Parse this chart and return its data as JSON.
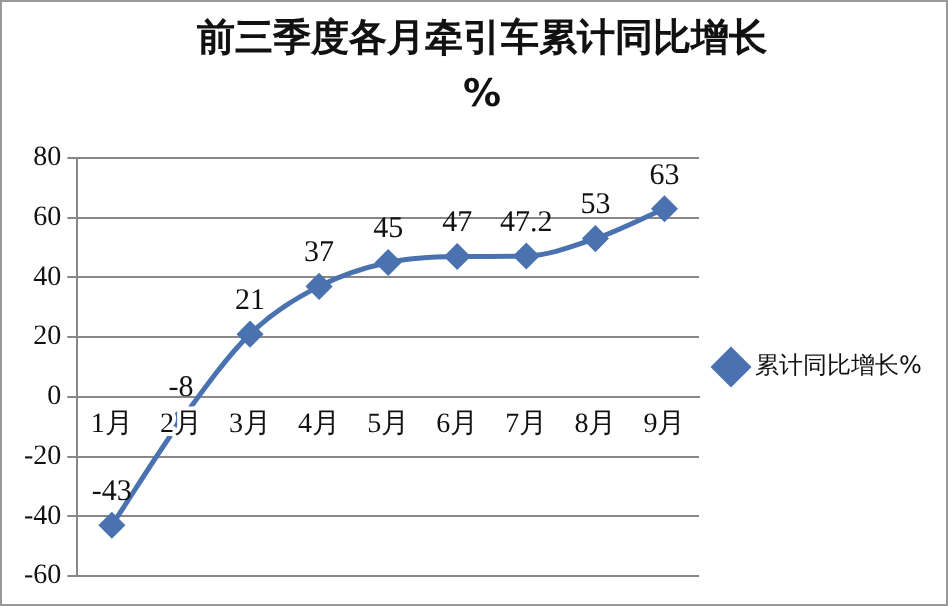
{
  "chart_data": {
    "type": "line",
    "title": "前三季度各月牵引车累计同比增长%",
    "categories": [
      "1月",
      "2月",
      "3月",
      "4月",
      "5月",
      "6月",
      "7月",
      "8月",
      "9月"
    ],
    "series": [
      {
        "name": "累计同比增长%",
        "color": "#4a72b0",
        "values": [
          -43,
          -8,
          21,
          37,
          45,
          47,
          47.2,
          53,
          63
        ]
      }
    ],
    "ylim": [
      -60,
      80
    ],
    "yticks": [
      -60,
      -40,
      -20,
      0,
      20,
      40,
      60,
      80
    ],
    "grid": "y",
    "legend": "right",
    "marker": "diamond",
    "data_labels": true
  }
}
